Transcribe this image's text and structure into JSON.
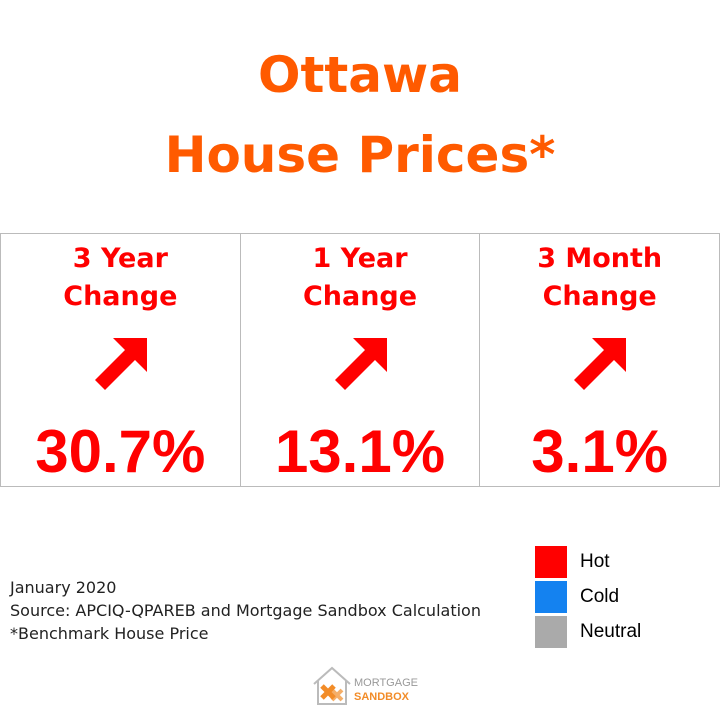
{
  "header": {
    "title": [
      "Ottawa",
      "House Prices*"
    ],
    "color": "#ff5a00"
  },
  "cards": [
    {
      "label": [
        "3 Year",
        "Change"
      ],
      "value": "30.7%",
      "color": "#ff0000"
    },
    {
      "label": [
        "1 Year",
        "Change"
      ],
      "value": "13.1%",
      "color": "#ff0000"
    },
    {
      "label": [
        "3 Month",
        "Change"
      ],
      "value": "3.1%",
      "color": "#ff0000"
    }
  ],
  "notes": [
    "January 2020",
    "Source: APCIQ-QPAREB and Mortgage Sandbox Calculation",
    "*Benchmark House Price"
  ],
  "legend": [
    {
      "name": "Hot",
      "color": "#ff0000"
    },
    {
      "name": "Cold",
      "color": "#1482f0"
    },
    {
      "name": "Neutral",
      "color": "#aaaaaa"
    }
  ],
  "logo": [
    "MORTGAGE",
    "SANDBOX"
  ]
}
